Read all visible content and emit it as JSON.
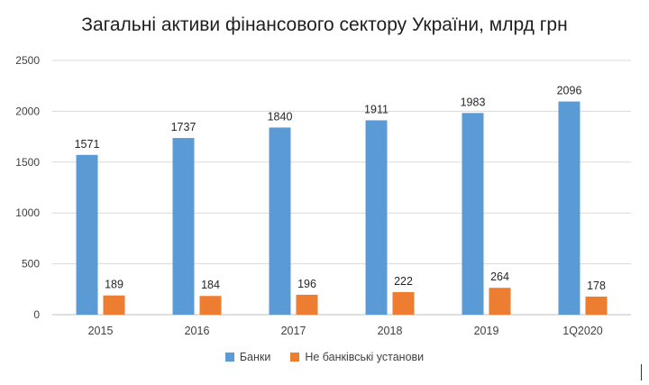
{
  "chart_data": {
    "type": "bar",
    "title": "Загальні активи фінансового сектору України, млрд грн",
    "categories": [
      "2015",
      "2016",
      "2017",
      "2018",
      "2019",
      "1Q2020"
    ],
    "series": [
      {
        "name": "Банки",
        "values": [
          1571,
          1737,
          1840,
          1911,
          1983,
          2096
        ],
        "color": "#5B9BD5"
      },
      {
        "name": "Не банківські установи",
        "values": [
          189,
          184,
          196,
          222,
          264,
          178
        ],
        "color": "#ED7D31"
      }
    ],
    "ylim": [
      0,
      2500
    ],
    "yticks": [
      "0",
      "500",
      "1000",
      "1500",
      "2000",
      "2500"
    ],
    "grid": true,
    "legend_position": "bottom",
    "xlabel": "",
    "ylabel": ""
  }
}
